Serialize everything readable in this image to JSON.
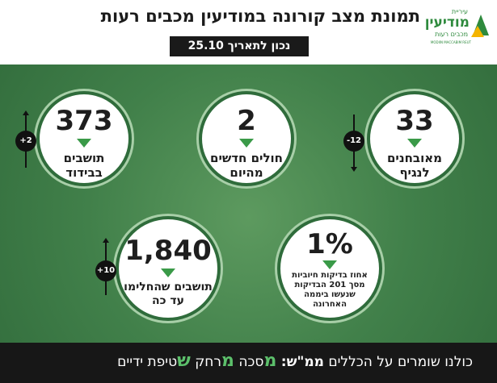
{
  "header": {
    "title": "תמונת מצב קורונה במודיעין מכבים רעות",
    "date": "נכון לתאריך 25.10"
  },
  "logo": {
    "line1": "עיריית",
    "line2": "מודיעין",
    "line3": "מכבים רעות",
    "line4": "MODIIN MACCABIM REUT"
  },
  "stats": {
    "isolation": {
      "value": "373",
      "label1": "תושבים",
      "label2": "בבידוד",
      "change": "+2"
    },
    "new_cases": {
      "value": "2",
      "label1": "חולים חדשים",
      "label2": "מהיום"
    },
    "confirmed": {
      "value": "33",
      "label1": "מאובחנים",
      "label2": "לנגיף",
      "change": "-12"
    },
    "recovered": {
      "value": "1,840",
      "label1": "תושבים שהחלימו",
      "label2": "עד כה",
      "change": "+10"
    },
    "positive_rate": {
      "value": "1%",
      "label1": "אחוז בדיקות חיוביות",
      "label2": "מסך 201 הבדיקות",
      "label3": "שנעשו ביממה",
      "label4": "האחרונה"
    }
  },
  "colors": {
    "accent": "#3a9a48",
    "background": "#3b7a46",
    "footer": "#171717"
  },
  "footer": {
    "intro": "כולנו שומרים על הכללים",
    "rules_label": "ממ\"ש:",
    "m1": "מ",
    "w1": "סכה",
    "m2": "מ",
    "w2": "רחק",
    "s": "ש",
    "w3": "טיפת ידיים"
  }
}
